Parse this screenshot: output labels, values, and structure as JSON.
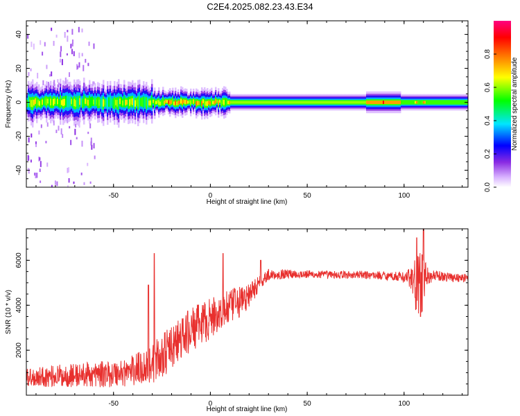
{
  "figure": {
    "title": "C2E4.2025.082.23.43.E34"
  },
  "colors": {
    "snr_line": "#e8302e",
    "axis": "#000000",
    "background": "#ffffff"
  },
  "chart_data": [
    {
      "type": "heatmap",
      "title": "",
      "xlabel": "Height of straight line (km)",
      "ylabel": "Frequency (Hz)",
      "xlim": [
        -95,
        133
      ],
      "ylim": [
        -50,
        48
      ],
      "x_ticks": [
        -50,
        0,
        50,
        100
      ],
      "x_tick_labels": [
        "-50",
        "0",
        "50",
        "100"
      ],
      "y_ticks": [
        -40,
        -20,
        0,
        20,
        40
      ],
      "y_tick_labels": [
        "-40",
        "-20",
        "0",
        "20",
        "40"
      ],
      "colorbar": {
        "label": "Normalized spectral amplitude",
        "range": [
          0,
          1
        ],
        "ticks": [
          0,
          0.2,
          0.4,
          0.6,
          0.8
        ],
        "tick_labels": [
          "0.0",
          "0.2",
          "0.4",
          "0.6",
          "0.8"
        ],
        "colormap": [
          "#ffffff",
          "#d9b3ff",
          "#8a2be2",
          "#0000ff",
          "#00e5ff",
          "#00ff00",
          "#ffff00",
          "#ff8000",
          "#ff0000",
          "#ff0080"
        ]
      },
      "band": {
        "center_hz": 0,
        "segments": [
          {
            "x_from": -95,
            "x_to": -30,
            "halfwidth_hz": 6,
            "intensity": 0.55,
            "noisy": true
          },
          {
            "x_from": -30,
            "x_to": 10,
            "halfwidth_hz": 4,
            "intensity": 0.65,
            "noisy": true
          },
          {
            "x_from": 10,
            "x_to": 80,
            "halfwidth_hz": 3,
            "intensity": 0.6,
            "noisy": false
          },
          {
            "x_from": 80,
            "x_to": 98,
            "halfwidth_hz": 4,
            "intensity": 0.75,
            "noisy": false
          },
          {
            "x_from": 98,
            "x_to": 133,
            "halfwidth_hz": 3,
            "intensity": 0.55,
            "noisy": false
          }
        ],
        "hotspots": [
          {
            "x": -22,
            "intensity": 0.85
          },
          {
            "x": -15,
            "intensity": 0.8
          },
          {
            "x": 2,
            "intensity": 0.85
          },
          {
            "x": 89,
            "intensity": 0.9
          },
          {
            "x": 106,
            "intensity": 0.8
          },
          {
            "x": 110,
            "intensity": 0.85
          }
        ],
        "scatter_region": {
          "x_from": -95,
          "x_to": -60,
          "freq_from": -50,
          "freq_to": 45,
          "intensity": 0.1
        }
      }
    },
    {
      "type": "line",
      "title": "",
      "xlabel": "Height of straight line (km)",
      "ylabel": "SNR (10 * v/v)",
      "xlim": [
        -95,
        133
      ],
      "ylim": [
        0,
        7400
      ],
      "x_ticks": [
        -50,
        0,
        50,
        100
      ],
      "x_tick_labels": [
        "-50",
        "0",
        "50",
        "100"
      ],
      "y_ticks": [
        2000,
        4000,
        6000
      ],
      "y_tick_labels": [
        "2000",
        "4000",
        "6000"
      ],
      "series": [
        {
          "name": "SNR",
          "color": "#e8302e",
          "trend": {
            "x": [
              -95,
              -80,
              -65,
              -50,
              -40,
              -30,
              -20,
              -10,
              0,
              10,
              20,
              25,
              30,
              40,
              60,
              80,
              95,
              100,
              104,
              106,
              108,
              110,
              112,
              115,
              125,
              133
            ],
            "y": [
              800,
              850,
              900,
              950,
              1100,
              1400,
              2100,
              2900,
              3400,
              3900,
              4400,
              5000,
              5350,
              5400,
              5350,
              5350,
              5300,
              5250,
              5200,
              4900,
              4800,
              5100,
              5300,
              5300,
              5250,
              5200
            ],
            "noise": [
              400,
              500,
              550,
              600,
              700,
              900,
              1000,
              1000,
              900,
              800,
              600,
              350,
              250,
              200,
              180,
              180,
              200,
              250,
              500,
              1400,
              1600,
              1400,
              400,
              250,
              200,
              200
            ]
          },
          "spikes": [
            {
              "x": -29,
              "y": 6300
            },
            {
              "x": -32,
              "y": 4900
            },
            {
              "x": 6.5,
              "y": 6300
            },
            {
              "x": 26,
              "y": 6000
            },
            {
              "x": 106.5,
              "y": 7000
            },
            {
              "x": 108.5,
              "y": 3500
            },
            {
              "x": 110,
              "y": 7400
            }
          ]
        }
      ]
    }
  ]
}
